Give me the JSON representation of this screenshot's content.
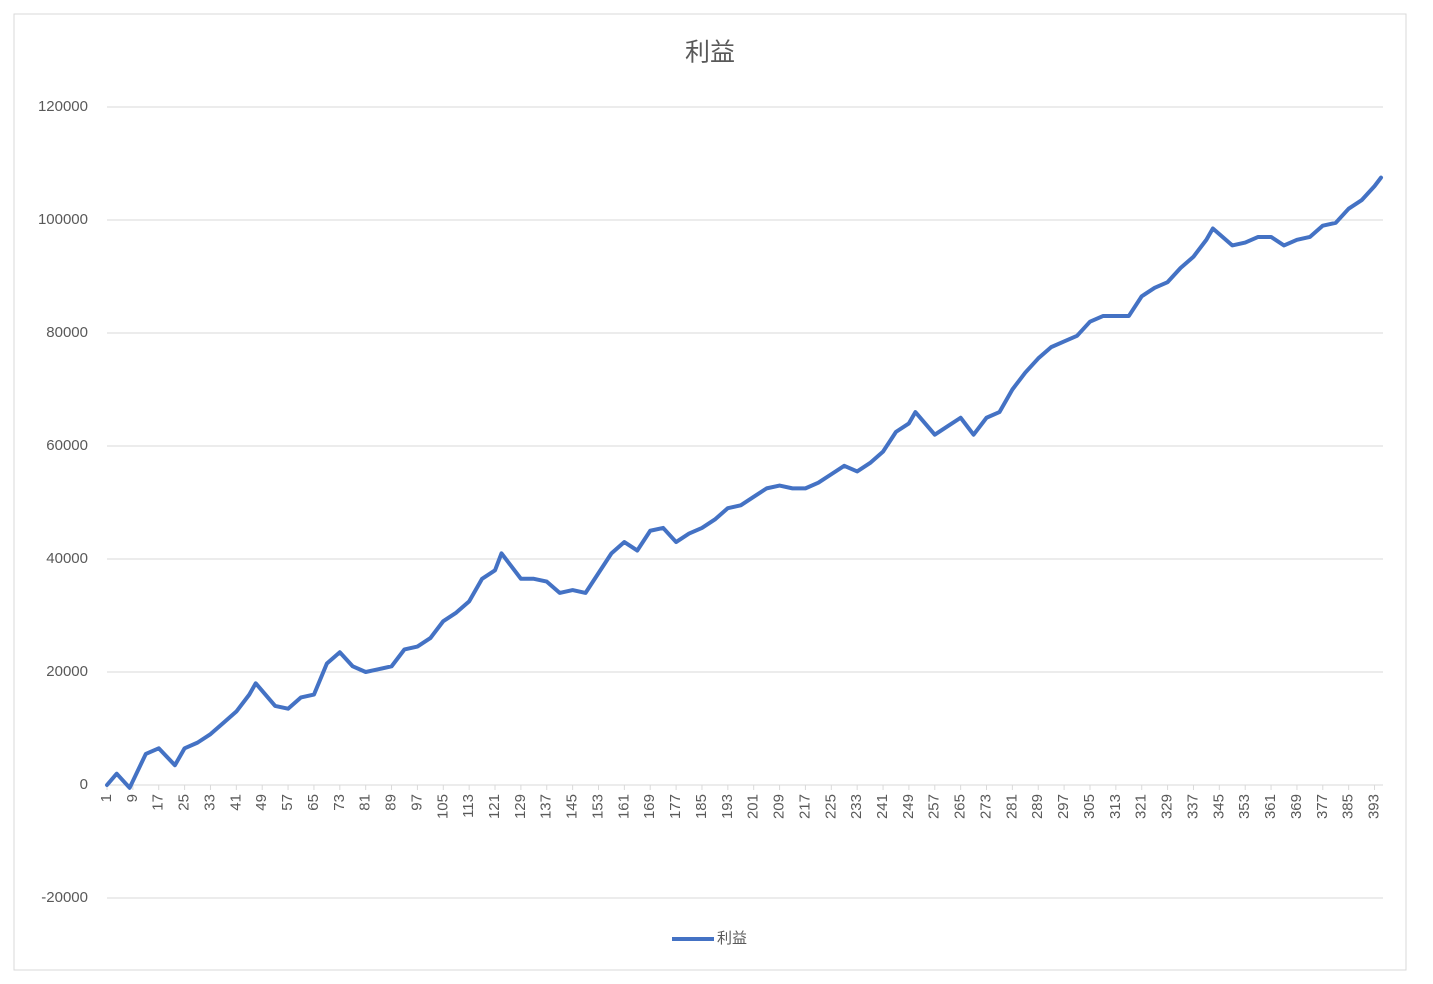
{
  "chart_data": {
    "type": "line",
    "title": "利益",
    "x": [
      1,
      4,
      8,
      13,
      17,
      22,
      25,
      29,
      33,
      37,
      41,
      45,
      47,
      53,
      57,
      61,
      65,
      69,
      73,
      77,
      81,
      85,
      89,
      93,
      97,
      101,
      105,
      109,
      113,
      117,
      121,
      123,
      125,
      129,
      133,
      137,
      141,
      145,
      149,
      153,
      157,
      161,
      165,
      169,
      173,
      177,
      181,
      185,
      189,
      193,
      197,
      201,
      205,
      209,
      213,
      217,
      221,
      225,
      229,
      233,
      237,
      241,
      245,
      249,
      251,
      257,
      261,
      265,
      269,
      273,
      277,
      281,
      285,
      289,
      293,
      297,
      301,
      305,
      309,
      313,
      317,
      321,
      325,
      329,
      333,
      337,
      341,
      343,
      349,
      353,
      357,
      361,
      365,
      369,
      373,
      377,
      381,
      385,
      389,
      393,
      395
    ],
    "series": [
      {
        "name": "利益",
        "color": "#4472c4",
        "values": [
          0,
          2000,
          -500,
          5500,
          6500,
          3500,
          6500,
          7500,
          9000,
          11000,
          13000,
          16000,
          18000,
          14000,
          13500,
          15500,
          16000,
          21500,
          23500,
          21000,
          20000,
          20500,
          21000,
          24000,
          24500,
          26000,
          29000,
          30500,
          32500,
          36500,
          38000,
          41000,
          39500,
          36500,
          36500,
          36000,
          34000,
          34500,
          34000,
          37500,
          41000,
          43000,
          41500,
          45000,
          45500,
          43000,
          44500,
          45500,
          47000,
          49000,
          49500,
          51000,
          52500,
          53000,
          52500,
          52500,
          53500,
          55000,
          56500,
          55500,
          57000,
          59000,
          62500,
          64000,
          66000,
          62000,
          63500,
          65000,
          62000,
          65000,
          66000,
          70000,
          73000,
          75500,
          77500,
          78500,
          79500,
          82000,
          83000,
          83000,
          83000,
          86500,
          88000,
          89000,
          91500,
          93500,
          96500,
          98500,
          95500,
          96000,
          97000,
          97000,
          95500,
          96500,
          97000,
          99000,
          99500,
          102000,
          103500,
          106000,
          107500
        ]
      }
    ],
    "xlim": [
      1,
      395
    ],
    "xticks": [
      1,
      9,
      17,
      25,
      33,
      41,
      49,
      57,
      65,
      73,
      81,
      89,
      97,
      105,
      113,
      121,
      129,
      137,
      145,
      153,
      161,
      169,
      177,
      185,
      193,
      201,
      209,
      217,
      225,
      233,
      241,
      249,
      257,
      265,
      273,
      281,
      289,
      297,
      305,
      313,
      321,
      329,
      337,
      345,
      353,
      361,
      369,
      377,
      385,
      393
    ],
    "ylim": [
      -20000,
      120000
    ],
    "yticks": [
      -20000,
      0,
      20000,
      40000,
      60000,
      80000,
      100000,
      120000
    ],
    "grid": true,
    "legend": "bottom"
  }
}
